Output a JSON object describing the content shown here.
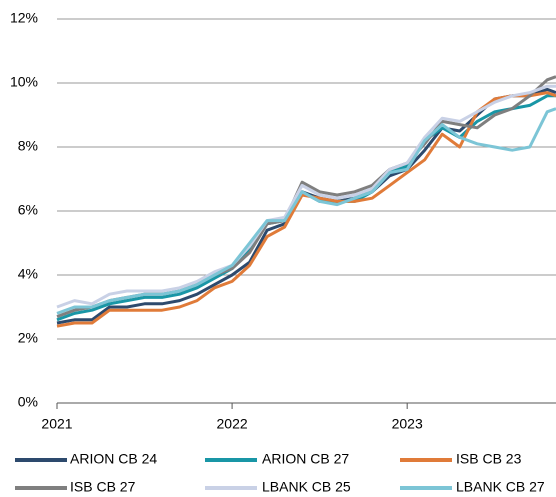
{
  "chart_data": {
    "type": "line",
    "x": [
      2021.0,
      2021.1,
      2021.2,
      2021.3,
      2021.4,
      2021.5,
      2021.6,
      2021.7,
      2021.8,
      2021.9,
      2022.0,
      2022.1,
      2022.2,
      2022.3,
      2022.4,
      2022.5,
      2022.6,
      2022.7,
      2022.8,
      2022.9,
      2023.0,
      2023.1,
      2023.2,
      2023.3,
      2023.4,
      2023.5,
      2023.6,
      2023.7,
      2023.8,
      2023.85
    ],
    "series": [
      {
        "name": "ARION CB 24",
        "color": "#2d4a6d",
        "values": [
          2.5,
          2.6,
          2.6,
          3.0,
          3.0,
          3.1,
          3.1,
          3.2,
          3.4,
          3.7,
          4.0,
          4.4,
          5.4,
          5.6,
          6.6,
          6.4,
          6.3,
          6.4,
          6.6,
          7.1,
          7.3,
          7.9,
          8.6,
          8.5,
          9.0,
          9.5,
          9.6,
          9.6,
          9.8,
          9.7
        ]
      },
      {
        "name": "ARION CB 27",
        "color": "#1996a6",
        "values": [
          2.6,
          2.8,
          2.9,
          3.1,
          3.2,
          3.3,
          3.3,
          3.4,
          3.6,
          3.9,
          4.2,
          4.8,
          5.6,
          5.7,
          6.6,
          6.3,
          6.3,
          6.3,
          6.6,
          7.2,
          7.4,
          8.2,
          8.6,
          8.3,
          8.8,
          9.1,
          9.2,
          9.3,
          9.6,
          9.6
        ]
      },
      {
        "name": "ISB CB 23",
        "color": "#e07b39",
        "values": [
          2.4,
          2.5,
          2.5,
          2.9,
          2.9,
          2.9,
          2.9,
          3.0,
          3.2,
          3.6,
          3.8,
          4.3,
          5.2,
          5.5,
          6.5,
          6.4,
          6.3,
          6.3,
          6.4,
          6.8,
          7.2,
          7.6,
          8.4,
          8.0,
          9.1,
          9.5,
          9.6,
          9.6,
          9.7,
          9.6
        ]
      },
      {
        "name": "ISB CB 27",
        "color": "#7f7f7f",
        "values": [
          2.7,
          2.9,
          3.0,
          3.2,
          3.3,
          3.4,
          3.4,
          3.5,
          3.7,
          4.0,
          4.2,
          4.7,
          5.6,
          5.7,
          6.9,
          6.6,
          6.5,
          6.6,
          6.8,
          7.3,
          7.5,
          8.1,
          8.8,
          8.7,
          8.6,
          9.0,
          9.2,
          9.6,
          10.1,
          10.2
        ]
      },
      {
        "name": "LBANK CB 25",
        "color": "#c9d1e6",
        "values": [
          3.0,
          3.2,
          3.1,
          3.4,
          3.5,
          3.5,
          3.5,
          3.6,
          3.8,
          4.1,
          4.3,
          4.9,
          5.7,
          5.8,
          6.8,
          6.5,
          6.4,
          6.5,
          6.7,
          7.3,
          7.5,
          8.3,
          8.9,
          8.8,
          9.1,
          9.4,
          9.6,
          9.7,
          9.9,
          9.9
        ]
      },
      {
        "name": "LBANK CB 27",
        "color": "#7cc5d6",
        "values": [
          2.8,
          3.0,
          3.0,
          3.2,
          3.3,
          3.4,
          3.4,
          3.5,
          3.7,
          4.0,
          4.3,
          5.0,
          5.7,
          5.7,
          6.6,
          6.3,
          6.2,
          6.4,
          6.6,
          7.2,
          7.3,
          8.2,
          8.7,
          8.3,
          8.1,
          8.0,
          7.9,
          8.0,
          9.1,
          9.2
        ]
      }
    ],
    "xlim": [
      2021.0,
      2023.85
    ],
    "xticks": [
      2021,
      2022,
      2023
    ],
    "ylim": [
      0,
      12
    ],
    "yticks": [
      {
        "value": 0,
        "label": "0%"
      },
      {
        "value": 2,
        "label": "2%"
      },
      {
        "value": 4,
        "label": "4%"
      },
      {
        "value": 6,
        "label": "6%"
      },
      {
        "value": 8,
        "label": "8%"
      },
      {
        "value": 10,
        "label": "10%"
      },
      {
        "value": 12,
        "label": "12%"
      }
    ],
    "grid": true,
    "legend": "bottom"
  }
}
